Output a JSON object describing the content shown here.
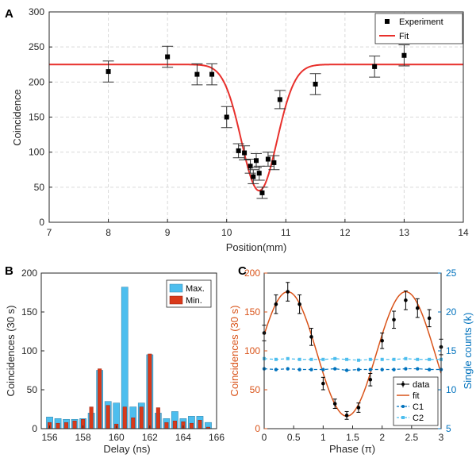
{
  "colors": {
    "fit_red": "#e8302c",
    "fit_orange": "#d95319",
    "max_blue": "#4dbeee",
    "min_red": "#d9391a",
    "c1_blue": "#0072bd",
    "c2_cyan": "#4dbeee",
    "grid": "#d9d9d9",
    "right_axis": "#0072bd"
  },
  "panels": {
    "a": "A",
    "b": "B",
    "c": "C"
  },
  "chart_data": [
    {
      "id": "A",
      "type": "scatter",
      "xlabel": "Position(mm)",
      "ylabel": "Coincidence",
      "xlim": [
        7,
        14
      ],
      "ylim": [
        0,
        300
      ],
      "xticks": [
        "7",
        "8",
        "9",
        "10",
        "11",
        "12",
        "13",
        "14"
      ],
      "yticks": [
        "0",
        "50",
        "100",
        "150",
        "200",
        "250",
        "300"
      ],
      "grid": true,
      "legend": {
        "position": "top-right",
        "entries": [
          "Experiment",
          "Fit"
        ]
      },
      "series": [
        {
          "name": "Experiment",
          "x": [
            8,
            9,
            9.5,
            9.75,
            10,
            10.2,
            10.3,
            10.4,
            10.45,
            10.5,
            10.55,
            10.6,
            10.7,
            10.8,
            10.9,
            11.5,
            12.5,
            13
          ],
          "y": [
            215,
            236,
            211,
            211,
            150,
            102,
            99,
            80,
            65,
            88,
            70,
            42,
            90,
            85,
            175,
            197,
            222,
            238
          ],
          "err": [
            15,
            15,
            15,
            15,
            15,
            10,
            10,
            10,
            10,
            10,
            10,
            8,
            10,
            10,
            13,
            15,
            15,
            15
          ]
        },
        {
          "name": "Fit",
          "model": "gaussian_dip",
          "baseline": 225,
          "depth": 180,
          "center": 10.55,
          "sigma": 0.3
        }
      ]
    },
    {
      "id": "B",
      "type": "bar",
      "xlabel": "Delay (ns)",
      "ylabel": "Coincidences (30 s)",
      "xlim": [
        155.5,
        166
      ],
      "ylim": [
        0,
        200
      ],
      "xticks": [
        "156",
        "158",
        "160",
        "162",
        "164",
        "166"
      ],
      "yticks": [
        "0",
        "50",
        "100",
        "150",
        "200"
      ],
      "legend": {
        "position": "top-right",
        "entries": [
          "Max.",
          "Min."
        ]
      },
      "x": [
        156,
        156.5,
        157,
        157.5,
        158,
        158.5,
        159,
        159.5,
        160,
        160.5,
        161,
        161.5,
        162,
        162.5,
        163,
        163.5,
        164,
        164.5,
        165,
        165.5
      ],
      "series": [
        {
          "name": "Max.",
          "values": [
            15,
            13,
            12,
            12,
            13,
            20,
            75,
            35,
            33,
            182,
            28,
            33,
            95,
            20,
            13,
            22,
            13,
            16,
            16,
            8
          ]
        },
        {
          "name": "Min.",
          "values": [
            8,
            7,
            8,
            10,
            12,
            28,
            77,
            30,
            6,
            28,
            14,
            28,
            96,
            27,
            8,
            10,
            9,
            7,
            11,
            2
          ]
        }
      ]
    },
    {
      "id": "C",
      "type": "scatter",
      "xlabel": "Phase (π)",
      "ylabel": "Coincidences (30 s)",
      "ylabel_right": "Single counts (k)",
      "xlim": [
        0,
        3
      ],
      "ylim": [
        0,
        200
      ],
      "ylim_right": [
        5,
        25
      ],
      "xticks": [
        "0",
        "0.5",
        "1",
        "1.5",
        "2",
        "2.5",
        "3"
      ],
      "yticks": [
        "0",
        "50",
        "100",
        "150",
        "200"
      ],
      "yticks_right": [
        "5",
        "10",
        "15",
        "20",
        "25"
      ],
      "legend": {
        "position": "bottom-right",
        "entries": [
          "data",
          "fit",
          "C1",
          "C2"
        ]
      },
      "series": [
        {
          "name": "data",
          "x": [
            0,
            0.2,
            0.4,
            0.6,
            0.8,
            1.0,
            1.2,
            1.4,
            1.6,
            1.8,
            2.0,
            2.2,
            2.4,
            2.6,
            2.8,
            3.0
          ],
          "y": [
            123,
            160,
            176,
            160,
            118,
            58,
            32,
            17,
            27,
            63,
            113,
            140,
            165,
            155,
            142,
            105
          ],
          "err": [
            10,
            12,
            12,
            12,
            11,
            8,
            6,
            5,
            6,
            8,
            10,
            11,
            12,
            12,
            11,
            10
          ]
        },
        {
          "name": "fit",
          "model": "cosine",
          "offset": 96,
          "amplitude": 80,
          "period": 2,
          "peak_x": 0.4
        },
        {
          "name": "C1",
          "x": [
            0,
            0.2,
            0.4,
            0.6,
            0.8,
            1.0,
            1.2,
            1.4,
            1.6,
            1.8,
            2.0,
            2.2,
            2.4,
            2.6,
            2.8,
            3.0
          ],
          "y": [
            12.7,
            12.6,
            12.7,
            12.6,
            12.6,
            12.6,
            12.7,
            12.5,
            12.6,
            12.6,
            12.6,
            12.6,
            12.7,
            12.7,
            12.6,
            12.6
          ]
        },
        {
          "name": "C2",
          "x": [
            0,
            0.2,
            0.4,
            0.6,
            0.8,
            1.0,
            1.2,
            1.4,
            1.6,
            1.8,
            2.0,
            2.2,
            2.4,
            2.6,
            2.8,
            3.0
          ],
          "y": [
            14.0,
            13.9,
            14.0,
            13.9,
            13.9,
            13.9,
            14.0,
            13.9,
            13.8,
            13.9,
            13.9,
            13.9,
            14.0,
            13.9,
            13.9,
            13.9
          ]
        }
      ]
    }
  ]
}
